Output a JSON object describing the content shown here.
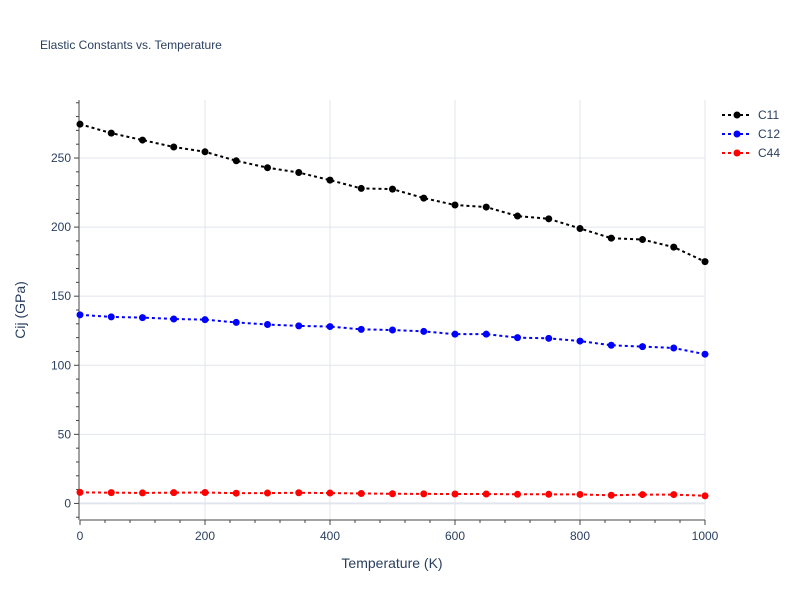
{
  "chart_data": {
    "type": "line",
    "title": "Elastic Constants vs. Temperature",
    "xlabel": "Temperature (K)",
    "ylabel": "Cij (GPa)",
    "xlim": [
      0,
      1000
    ],
    "ylim": [
      -12,
      292
    ],
    "xticks": [
      0,
      200,
      400,
      600,
      800,
      1000
    ],
    "yticks": [
      0,
      50,
      100,
      150,
      200,
      250
    ],
    "grid": true,
    "legend_position": "top-right",
    "x": [
      0,
      50,
      100,
      150,
      200,
      250,
      300,
      350,
      400,
      450,
      500,
      550,
      600,
      650,
      700,
      750,
      800,
      850,
      900,
      950,
      1000
    ],
    "series": [
      {
        "name": "C11",
        "color": "#000000",
        "values": [
          274.5,
          268,
          263,
          258,
          254.5,
          248,
          243,
          239.5,
          234,
          228,
          227.5,
          221,
          216,
          214.5,
          208,
          206,
          199,
          192,
          191,
          185.5,
          175
        ]
      },
      {
        "name": "C12",
        "color": "#0000ff",
        "values": [
          136.5,
          135,
          134.5,
          133.5,
          133,
          131,
          129.5,
          128.5,
          128,
          126,
          125.5,
          124.5,
          122.5,
          122.5,
          120,
          119.5,
          117.5,
          114.5,
          113.5,
          112.5,
          108
        ]
      },
      {
        "name": "C44",
        "color": "#ff0000",
        "values": [
          8,
          7.8,
          7.6,
          7.8,
          7.9,
          7.4,
          7.5,
          7.7,
          7.5,
          7.2,
          7.0,
          6.9,
          6.8,
          6.8,
          6.6,
          6.6,
          6.5,
          5.9,
          6.4,
          6.4,
          5.5
        ]
      }
    ]
  }
}
